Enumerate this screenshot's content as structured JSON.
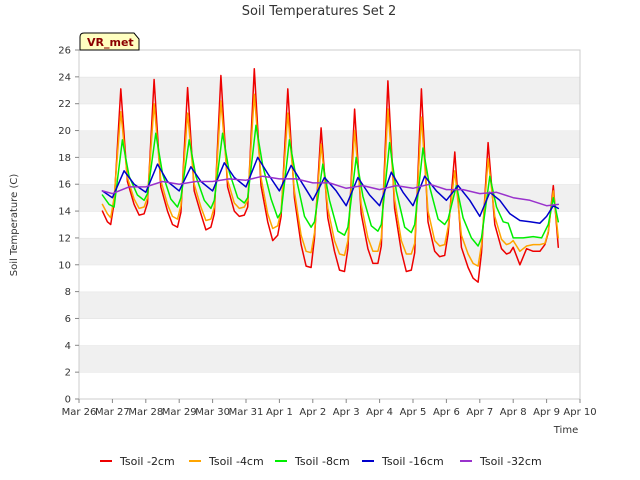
{
  "chart_data": {
    "type": "line",
    "title": "Soil Temperatures Set 2",
    "xlabel": "Time",
    "ylabel": "Soil Temperature (C)",
    "badge": "VR_met",
    "ylim": [
      0,
      26
    ],
    "yticks": [
      0,
      2,
      4,
      6,
      8,
      10,
      12,
      14,
      16,
      18,
      20,
      22,
      24,
      26
    ],
    "xlim": [
      0,
      15
    ],
    "xticks": [
      {
        "x": 0,
        "label": "Mar 26"
      },
      {
        "x": 1,
        "label": "Mar 27"
      },
      {
        "x": 2,
        "label": "Mar 28"
      },
      {
        "x": 3,
        "label": "Mar 29"
      },
      {
        "x": 4,
        "label": "Mar 30"
      },
      {
        "x": 5,
        "label": "Mar 31"
      },
      {
        "x": 6,
        "label": "Apr 1"
      },
      {
        "x": 7,
        "label": "Apr 2"
      },
      {
        "x": 8,
        "label": "Apr 3"
      },
      {
        "x": 9,
        "label": "Apr 4"
      },
      {
        "x": 10,
        "label": "Apr 5"
      },
      {
        "x": 11,
        "label": "Apr 6"
      },
      {
        "x": 12,
        "label": "Apr 7"
      },
      {
        "x": 13,
        "label": "Apr 8"
      },
      {
        "x": 14,
        "label": "Apr 9"
      },
      {
        "x": 15,
        "label": "Apr 10"
      }
    ],
    "grid": "horizontal bands",
    "legend_position": "bottom",
    "series": [
      {
        "name": "Tsoil -2cm",
        "color": "#ee0000",
        "x": [
          0.7,
          0.85,
          0.95,
          1.05,
          1.25,
          1.45,
          1.65,
          1.8,
          1.95,
          2.05,
          2.25,
          2.45,
          2.65,
          2.8,
          2.95,
          3.05,
          3.25,
          3.45,
          3.65,
          3.8,
          3.95,
          4.05,
          4.25,
          4.45,
          4.65,
          4.8,
          4.95,
          5.05,
          5.25,
          5.45,
          5.65,
          5.8,
          5.95,
          6.05,
          6.25,
          6.45,
          6.65,
          6.8,
          6.95,
          7.05,
          7.25,
          7.45,
          7.65,
          7.8,
          7.95,
          8.05,
          8.25,
          8.45,
          8.65,
          8.8,
          8.95,
          9.05,
          9.25,
          9.45,
          9.65,
          9.8,
          9.95,
          10.05,
          10.25,
          10.45,
          10.65,
          10.8,
          10.95,
          11.05,
          11.25,
          11.45,
          11.65,
          11.8,
          11.95,
          12.05,
          12.25,
          12.45,
          12.65,
          12.8,
          12.9,
          13.0,
          13.2,
          13.4,
          13.6,
          13.8,
          13.95,
          14.05,
          14.2,
          14.35
        ],
        "values": [
          14.0,
          13.2,
          13.0,
          14.6,
          23.1,
          16.2,
          14.5,
          13.7,
          13.8,
          14.6,
          23.8,
          15.8,
          14.0,
          13.0,
          12.8,
          13.9,
          23.2,
          15.5,
          13.8,
          12.6,
          12.8,
          13.8,
          24.1,
          15.8,
          14.0,
          13.6,
          13.7,
          14.3,
          24.6,
          15.9,
          13.2,
          11.8,
          12.2,
          13.6,
          23.1,
          15.0,
          11.5,
          9.9,
          9.8,
          12.0,
          20.2,
          13.5,
          11.0,
          9.6,
          9.5,
          11.2,
          21.6,
          13.8,
          11.2,
          10.1,
          10.1,
          11.4,
          23.7,
          14.2,
          11.0,
          9.5,
          9.6,
          10.9,
          23.1,
          13.2,
          11.0,
          10.6,
          10.7,
          12.3,
          18.4,
          11.3,
          9.8,
          9.0,
          8.7,
          10.9,
          19.1,
          13.0,
          11.2,
          10.8,
          10.9,
          11.3,
          10.0,
          11.2,
          11.0,
          11.0,
          11.5,
          12.4,
          15.9,
          11.3
        ]
      },
      {
        "name": "Tsoil -4cm",
        "color": "#ffa500",
        "x": [
          0.7,
          0.85,
          0.95,
          1.05,
          1.25,
          1.45,
          1.65,
          1.8,
          1.95,
          2.05,
          2.25,
          2.45,
          2.65,
          2.8,
          2.95,
          3.05,
          3.25,
          3.45,
          3.65,
          3.8,
          3.95,
          4.05,
          4.25,
          4.45,
          4.65,
          4.8,
          4.95,
          5.05,
          5.25,
          5.45,
          5.65,
          5.8,
          5.95,
          6.05,
          6.25,
          6.45,
          6.65,
          6.8,
          6.95,
          7.05,
          7.25,
          7.45,
          7.65,
          7.8,
          7.95,
          8.05,
          8.25,
          8.45,
          8.65,
          8.8,
          8.95,
          9.05,
          9.25,
          9.45,
          9.65,
          9.8,
          9.95,
          10.05,
          10.25,
          10.45,
          10.65,
          10.8,
          10.95,
          11.05,
          11.25,
          11.45,
          11.65,
          11.8,
          11.95,
          12.05,
          12.25,
          12.45,
          12.65,
          12.8,
          12.9,
          13.0,
          13.2,
          13.4,
          13.6,
          13.8,
          13.95,
          14.05,
          14.2,
          14.35
        ],
        "values": [
          14.5,
          13.8,
          13.5,
          15.0,
          21.4,
          16.5,
          14.9,
          14.2,
          14.3,
          15.0,
          22.0,
          16.3,
          14.5,
          13.6,
          13.4,
          14.4,
          21.3,
          16.0,
          14.3,
          13.3,
          13.4,
          14.3,
          22.2,
          16.3,
          14.6,
          14.2,
          14.3,
          14.8,
          22.7,
          16.5,
          13.8,
          12.7,
          12.9,
          14.0,
          21.3,
          15.5,
          12.2,
          11.0,
          10.9,
          12.4,
          19.0,
          14.2,
          11.8,
          10.8,
          10.7,
          11.8,
          20.0,
          14.5,
          12.0,
          11.0,
          11.0,
          12.0,
          21.6,
          14.9,
          11.8,
          10.8,
          10.8,
          11.6,
          21.0,
          14.0,
          11.8,
          11.4,
          11.5,
          12.8,
          17.0,
          12.2,
          10.8,
          10.1,
          9.9,
          11.5,
          17.9,
          13.6,
          11.9,
          11.5,
          11.6,
          11.8,
          11.0,
          11.4,
          11.5,
          11.5,
          11.6,
          12.5,
          15.5,
          12.0
        ]
      },
      {
        "name": "Tsoil -8cm",
        "color": "#00ee00",
        "x": [
          0.7,
          0.9,
          1.05,
          1.3,
          1.5,
          1.75,
          1.95,
          2.05,
          2.3,
          2.5,
          2.75,
          2.95,
          3.05,
          3.3,
          3.5,
          3.75,
          3.95,
          4.05,
          4.3,
          4.5,
          4.75,
          4.95,
          5.05,
          5.3,
          5.5,
          5.75,
          5.95,
          6.05,
          6.3,
          6.5,
          6.75,
          6.95,
          7.05,
          7.3,
          7.5,
          7.75,
          7.95,
          8.05,
          8.3,
          8.5,
          8.75,
          8.95,
          9.05,
          9.3,
          9.5,
          9.75,
          9.95,
          10.05,
          10.3,
          10.5,
          10.75,
          10.95,
          11.05,
          11.3,
          11.5,
          11.75,
          11.95,
          12.05,
          12.3,
          12.5,
          12.7,
          12.85,
          13.0,
          13.3,
          13.6,
          13.85,
          14.05,
          14.2,
          14.35
        ],
        "values": [
          15.2,
          14.5,
          14.3,
          19.3,
          16.6,
          15.2,
          14.8,
          15.3,
          19.8,
          16.8,
          14.9,
          14.3,
          15.0,
          19.3,
          16.6,
          14.8,
          14.2,
          14.8,
          19.8,
          16.9,
          15.0,
          14.6,
          15.0,
          20.4,
          17.4,
          14.9,
          13.5,
          13.9,
          19.3,
          16.5,
          13.6,
          12.8,
          13.2,
          17.5,
          14.8,
          12.5,
          12.2,
          12.8,
          18.0,
          15.1,
          12.9,
          12.5,
          13.0,
          19.1,
          15.5,
          12.8,
          12.4,
          13.0,
          18.7,
          15.8,
          13.4,
          13.0,
          13.4,
          15.9,
          13.5,
          12.0,
          11.4,
          12.0,
          16.6,
          14.3,
          13.2,
          13.1,
          12.0,
          12.0,
          12.1,
          12.0,
          13.0,
          15.0,
          13.2
        ]
      },
      {
        "name": "Tsoil -16cm",
        "color": "#0000cc",
        "x": [
          0.7,
          1.0,
          1.35,
          1.65,
          2.0,
          2.35,
          2.65,
          3.0,
          3.35,
          3.65,
          4.0,
          4.35,
          4.65,
          5.0,
          5.35,
          5.65,
          6.0,
          6.35,
          6.7,
          7.0,
          7.35,
          7.7,
          8.0,
          8.35,
          8.7,
          9.0,
          9.35,
          9.7,
          10.0,
          10.35,
          10.7,
          11.0,
          11.35,
          11.7,
          12.0,
          12.3,
          12.6,
          12.9,
          13.2,
          13.5,
          13.8,
          14.0,
          14.2,
          14.35
        ],
        "values": [
          15.5,
          15.0,
          17.0,
          16.0,
          15.4,
          17.5,
          16.2,
          15.5,
          17.3,
          16.2,
          15.5,
          17.6,
          16.5,
          15.8,
          18.0,
          16.8,
          15.5,
          17.4,
          16.0,
          14.8,
          16.5,
          15.5,
          14.4,
          16.5,
          15.2,
          14.4,
          16.9,
          15.4,
          14.4,
          16.6,
          15.5,
          14.8,
          15.9,
          14.8,
          13.6,
          15.4,
          14.8,
          13.8,
          13.3,
          13.2,
          13.1,
          13.6,
          14.4,
          14.2
        ]
      },
      {
        "name": "Tsoil -32cm",
        "color": "#9932cc",
        "x": [
          0.7,
          1.0,
          1.5,
          2.0,
          2.5,
          3.0,
          3.5,
          4.0,
          4.5,
          5.0,
          5.5,
          6.0,
          6.5,
          7.0,
          7.5,
          8.0,
          8.5,
          9.0,
          9.5,
          10.0,
          10.5,
          11.0,
          11.5,
          12.0,
          12.5,
          13.0,
          13.5,
          14.0,
          14.35
        ],
        "values": [
          15.5,
          15.3,
          15.8,
          15.8,
          16.2,
          16.0,
          16.2,
          16.2,
          16.4,
          16.3,
          16.6,
          16.4,
          16.4,
          16.1,
          16.1,
          15.7,
          15.9,
          15.6,
          15.9,
          15.7,
          16.0,
          15.6,
          15.6,
          15.3,
          15.4,
          15.0,
          14.8,
          14.4,
          14.5
        ]
      }
    ]
  }
}
